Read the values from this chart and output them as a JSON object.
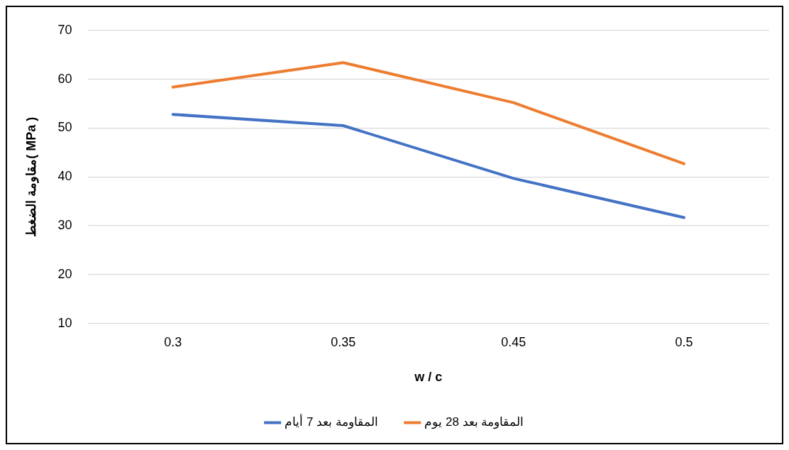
{
  "chart_data": {
    "type": "line",
    "xlabel": "w / c",
    "ylabel": "مقاومة الضغط( MPa )",
    "categories": [
      "0.3",
      "0.35",
      "0.45",
      "0.5"
    ],
    "series": [
      {
        "name": "المقاومة بعد 7 أيام",
        "color": "#4472c4",
        "values": [
          52.8,
          50.5,
          39.7,
          31.7
        ]
      },
      {
        "name": "المقاومة بعد 28 يوم",
        "color": "#ed7d31",
        "values": [
          58.4,
          63.4,
          55.2,
          42.7
        ]
      }
    ],
    "ylim": [
      10,
      70
    ],
    "yticks": [
      10,
      20,
      30,
      40,
      50,
      60,
      70
    ],
    "grid": "y",
    "legend": "bottom",
    "marker": "none",
    "line_style": "solid"
  }
}
